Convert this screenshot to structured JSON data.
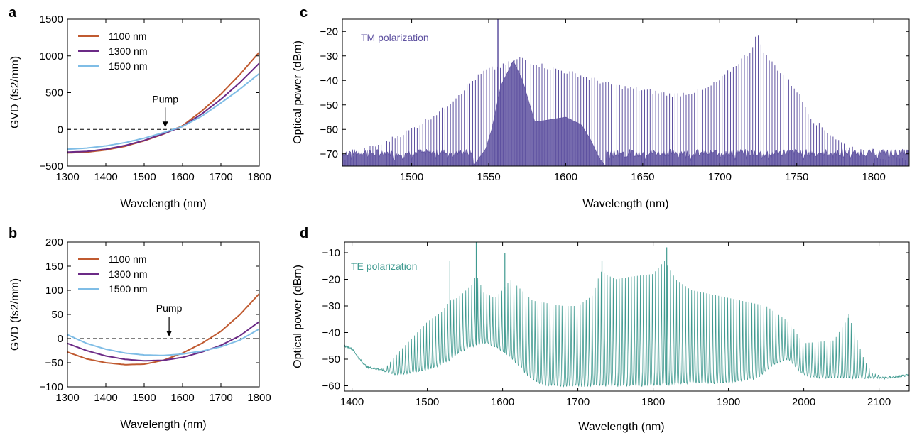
{
  "figure": {
    "colors": {
      "s1100": "#c05a30",
      "s1300": "#6b2a86",
      "s1500": "#7fbde6",
      "tm": "#5e51a0",
      "te": "#3f9a90"
    }
  },
  "chart_data": [
    {
      "panel": "a",
      "type": "line",
      "xlabel": "Wavelength  (nm)",
      "ylabel": "GVD (fs2/mm)",
      "xlim": [
        1300,
        1800
      ],
      "ylim": [
        -500,
        1500
      ],
      "xticks": [
        1300,
        1400,
        1500,
        1600,
        1700,
        1800
      ],
      "yticks": [
        -500,
        0,
        500,
        1000,
        1500
      ],
      "legend_position": "top-left",
      "annotation": {
        "text": "Pump",
        "x": 1555
      },
      "zero_line": true,
      "series": [
        {
          "name": "1100 nm",
          "color_key": "s1100",
          "x": [
            1300,
            1350,
            1400,
            1450,
            1500,
            1550,
            1600,
            1650,
            1700,
            1750,
            1800
          ],
          "y": [
            -320,
            -310,
            -280,
            -230,
            -155,
            -65,
            50,
            250,
            480,
            750,
            1050
          ]
        },
        {
          "name": "1300 nm",
          "color_key": "s1300",
          "x": [
            1300,
            1350,
            1400,
            1450,
            1500,
            1550,
            1600,
            1650,
            1700,
            1750,
            1800
          ],
          "y": [
            -310,
            -300,
            -270,
            -220,
            -150,
            -60,
            40,
            210,
            410,
            640,
            900
          ]
        },
        {
          "name": "1500 nm",
          "color_key": "s1500",
          "x": [
            1300,
            1350,
            1400,
            1450,
            1500,
            1550,
            1600,
            1650,
            1700,
            1750,
            1800
          ],
          "y": [
            -270,
            -255,
            -225,
            -180,
            -120,
            -45,
            40,
            180,
            360,
            550,
            760
          ]
        }
      ]
    },
    {
      "panel": "b",
      "type": "line",
      "xlabel": "Wavelength  (nm)",
      "ylabel": "GVD (fs2/mm)",
      "xlim": [
        1300,
        1800
      ],
      "ylim": [
        -100,
        200
      ],
      "xticks": [
        1300,
        1400,
        1500,
        1600,
        1700,
        1800
      ],
      "yticks": [
        -100,
        -50,
        0,
        50,
        100,
        150,
        200
      ],
      "legend_position": "top-left",
      "annotation": {
        "text": "Pump",
        "x": 1565
      },
      "zero_line": true,
      "series": [
        {
          "name": "1100 nm",
          "color_key": "s1100",
          "x": [
            1300,
            1350,
            1400,
            1450,
            1500,
            1550,
            1600,
            1650,
            1700,
            1750,
            1800
          ],
          "y": [
            -28,
            -42,
            -50,
            -54,
            -53,
            -45,
            -30,
            -10,
            15,
            50,
            93
          ]
        },
        {
          "name": "1300 nm",
          "color_key": "s1300",
          "x": [
            1300,
            1350,
            1400,
            1450,
            1500,
            1550,
            1600,
            1650,
            1700,
            1750,
            1800
          ],
          "y": [
            -10,
            -25,
            -36,
            -43,
            -46,
            -45,
            -39,
            -28,
            -14,
            6,
            35
          ]
        },
        {
          "name": "1500 nm",
          "color_key": "s1500",
          "x": [
            1300,
            1350,
            1400,
            1450,
            1500,
            1550,
            1600,
            1650,
            1700,
            1750,
            1800
          ],
          "y": [
            8,
            -10,
            -22,
            -30,
            -34,
            -35,
            -32,
            -26,
            -17,
            -3,
            20
          ]
        }
      ]
    },
    {
      "panel": "c",
      "type": "line",
      "xlabel": "Wavelength (nm)",
      "ylabel": "Optical power (dBm)",
      "xlim": [
        1455,
        1823
      ],
      "ylim": [
        -75,
        -15
      ],
      "xticks": [
        1500,
        1550,
        1600,
        1650,
        1700,
        1750,
        1800
      ],
      "yticks": [
        -70,
        -60,
        -50,
        -40,
        -30,
        -20
      ],
      "annotation": {
        "text": "TM polarization"
      },
      "series": [
        {
          "name": "TM polarization",
          "color_key": "tm",
          "comb_spacing_nm": 1.8,
          "pump": {
            "x": 1556,
            "y": -15
          },
          "noise_floor": -71,
          "envelope": {
            "x": [
              1455,
              1480,
              1500,
              1520,
              1540,
              1548,
              1560,
              1570,
              1590,
              1610,
              1630,
              1650,
              1670,
              1690,
              1700,
              1710,
              1720,
              1724,
              1730,
              1740,
              1750,
              1760,
              1780,
              1800,
              1823
            ],
            "y": [
              -72,
              -66,
              -60,
              -52,
              -40,
              -36,
              -34,
              -31,
              -35,
              -38,
              -42,
              -44,
              -46,
              -44,
              -40,
              -34,
              -28,
              -21,
              -30,
              -37,
              -44,
              -56,
              -66,
              -71,
              -73
            ]
          },
          "pedestal": {
            "x": [
              1540,
              1548,
              1552,
              1558,
              1566,
              1572,
              1580,
              1600,
              1610,
              1616,
              1622,
              1626
            ],
            "y": [
              -75,
              -68,
              -60,
              -42,
              -32,
              -40,
              -57,
              -55,
              -58,
              -64,
              -72,
              -75
            ]
          }
        }
      ]
    },
    {
      "panel": "d",
      "type": "line",
      "xlabel": "Wavelength (nm)",
      "ylabel": "Optical power (dBm)",
      "xlim": [
        1390,
        2140
      ],
      "ylim": [
        -62,
        -6
      ],
      "xticks": [
        1400,
        1500,
        1600,
        1700,
        1800,
        1900,
        2000,
        2100
      ],
      "yticks": [
        -60,
        -50,
        -40,
        -30,
        -20,
        -10
      ],
      "annotation": {
        "text": "TE polarization"
      },
      "series": [
        {
          "name": "TE polarization",
          "color_key": "te",
          "comb_spacing_nm": 4,
          "baseline": {
            "x": [
              1390,
              1400,
              1410,
              1420,
              1440,
              1460,
              1480,
              1500,
              1520,
              1540,
              1560,
              1580,
              1600,
              1620,
              1640,
              1660,
              1700,
              1750,
              1800,
              1850,
              1900,
              1940,
              1960,
              1980,
              1990,
              2000,
              2020,
              2050,
              2080,
              2110,
              2140
            ],
            "y": [
              -45,
              -46,
              -50,
              -53,
              -54,
              -56,
              -55,
              -54,
              -52,
              -48,
              -45,
              -44,
              -47,
              -52,
              -58,
              -60,
              -60,
              -60,
              -60,
              -59,
              -59,
              -57,
              -52,
              -50,
              -53,
              -56,
              -57,
              -57,
              -57,
              -57,
              -56
            ]
          },
          "envelope": {
            "x": [
              1445,
              1460,
              1480,
              1500,
              1520,
              1530,
              1540,
              1560,
              1565,
              1575,
              1590,
              1600,
              1610,
              1640,
              1680,
              1700,
              1720,
              1730,
              1750,
              1770,
              1800,
              1815,
              1830,
              1850,
              1900,
              1950,
              1980,
              2000,
              2040,
              2060,
              2080,
              2090,
              2100
            ],
            "y": [
              -53,
              -48,
              -42,
              -36,
              -32,
              -28,
              -27,
              -22,
              -18,
              -25,
              -27,
              -24,
              -20,
              -28,
              -30,
              -30,
              -26,
              -17,
              -20,
              -19,
              -18,
              -13,
              -20,
              -24,
              -27,
              -30,
              -36,
              -44,
              -43,
              -34,
              -50,
              -55,
              -56
            ]
          },
          "peaks": [
            [
              1530,
              -13
            ],
            [
              1565,
              -6
            ],
            [
              1603,
              -10
            ],
            [
              1732,
              -13
            ],
            [
              1818,
              -8
            ],
            [
              2060,
              -33
            ]
          ]
        }
      ]
    }
  ]
}
